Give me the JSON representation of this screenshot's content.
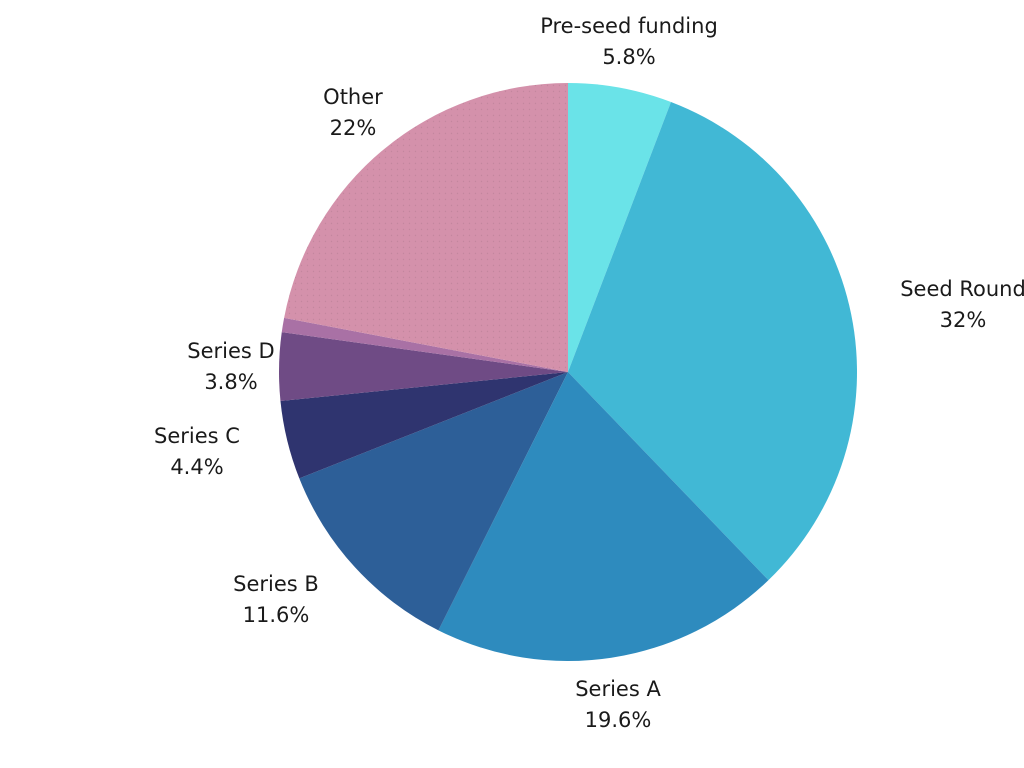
{
  "chart_data": {
    "type": "pie",
    "title": "",
    "slices": [
      {
        "label": "Pre-seed funding",
        "value_label": "5.8%",
        "value": 5.8,
        "color": "#6ae3e8"
      },
      {
        "label": "Seed Round",
        "value_label": "32%",
        "value": 32.0,
        "color": "#41b8d5"
      },
      {
        "label": "Series A",
        "value_label": "19.6%",
        "value": 19.6,
        "color": "#2e8bbe"
      },
      {
        "label": "Series B",
        "value_label": "11.6%",
        "value": 11.6,
        "color": "#2d5f98"
      },
      {
        "label": "Series C",
        "value_label": "4.4%",
        "value": 4.4,
        "color": "#2f346f"
      },
      {
        "label": "Series D",
        "value_label": "3.8%",
        "value": 3.8,
        "color": "#6f4b85"
      },
      {
        "label": "",
        "value_label": "",
        "value": 0.8,
        "color": "#a971a5"
      },
      {
        "label": "Other",
        "value_label": "22%",
        "value": 22.0,
        "color": "#d491ab"
      }
    ],
    "start_angle": "12 o'clock",
    "direction": "clockwise",
    "legend": "none"
  }
}
